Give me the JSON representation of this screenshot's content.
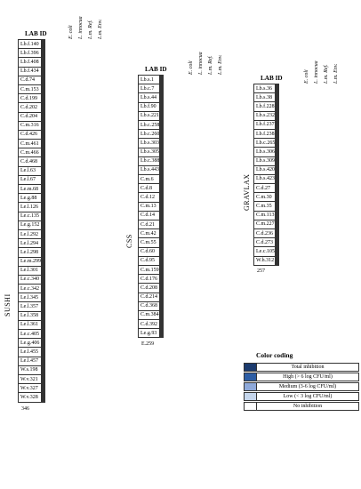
{
  "columns": [
    "E. coli",
    "L. innocua",
    "L.m. Ref.",
    "L.m. Env."
  ],
  "lab_id_header": "LAB ID",
  "levels": [
    "#ffffff",
    "#c5d6ec",
    "#8ea9da",
    "#2d5ea5",
    "#1c3b6e"
  ],
  "sushi": {
    "section": "SUSHI",
    "footer": "346",
    "rows": [
      {
        "id": "Lb.f.140",
        "v": [
          0,
          0,
          1,
          0
        ]
      },
      {
        "id": "Lb.f.396",
        "v": [
          0,
          0,
          1,
          0
        ]
      },
      {
        "id": "Lb.f.408",
        "v": [
          0,
          0,
          1,
          0
        ]
      },
      {
        "id": "Lb.f.434",
        "v": [
          0,
          0,
          1,
          0
        ]
      },
      {
        "id": "C.d.74",
        "v": [
          1,
          0,
          1,
          0
        ]
      },
      {
        "id": "C.m.153",
        "v": [
          0,
          1,
          2,
          2
        ]
      },
      {
        "id": "C.d.199",
        "v": [
          0,
          1,
          1,
          1
        ]
      },
      {
        "id": "C.d.202",
        "v": [
          1,
          0,
          1,
          0
        ]
      },
      {
        "id": "C.d.204",
        "v": [
          0,
          0,
          1,
          0
        ]
      },
      {
        "id": "C.m.316",
        "v": [
          2,
          4,
          4,
          4
        ]
      },
      {
        "id": "C.d.426",
        "v": [
          1,
          2,
          2,
          2
        ]
      },
      {
        "id": "C.m.461",
        "v": [
          2,
          4,
          2,
          2
        ]
      },
      {
        "id": "C.m.466",
        "v": [
          2,
          4,
          2,
          2
        ]
      },
      {
        "id": "C.d.468",
        "v": [
          2,
          0,
          4,
          4
        ]
      },
      {
        "id": "Le.l.63",
        "v": [
          2,
          2,
          2,
          2
        ]
      },
      {
        "id": "Le.l.67",
        "v": [
          2,
          2,
          2,
          2
        ]
      },
      {
        "id": "Le.m.68",
        "v": [
          2,
          2,
          2,
          4
        ]
      },
      {
        "id": "Le.g.88",
        "v": [
          2,
          2,
          2,
          2
        ]
      },
      {
        "id": "Le.l.126",
        "v": [
          2,
          2,
          2,
          2
        ]
      },
      {
        "id": "Le.c.135",
        "v": [
          2,
          2,
          2,
          2
        ]
      },
      {
        "id": "Le.g.152",
        "v": [
          2,
          2,
          2,
          2
        ]
      },
      {
        "id": "Le.l.292",
        "v": [
          2,
          2,
          2,
          2
        ]
      },
      {
        "id": "Le.l.294",
        "v": [
          2,
          2,
          2,
          2
        ]
      },
      {
        "id": "Le.l.298",
        "v": [
          2,
          2,
          2,
          2
        ]
      },
      {
        "id": "Le.m.299",
        "v": [
          2,
          2,
          2,
          2
        ]
      },
      {
        "id": "Le.l.301",
        "v": [
          2,
          2,
          2,
          2
        ]
      },
      {
        "id": "Le.c.340",
        "v": [
          2,
          2,
          2,
          2
        ]
      },
      {
        "id": "Le.c.342",
        "v": [
          2,
          2,
          2,
          2
        ]
      },
      {
        "id": "Le.l.345",
        "v": [
          2,
          2,
          2,
          2
        ]
      },
      {
        "id": "Le.l.357",
        "v": [
          2,
          2,
          2,
          2
        ]
      },
      {
        "id": "Le.l.358",
        "v": [
          2,
          2,
          4,
          2
        ]
      },
      {
        "id": "Le.l.361",
        "v": [
          2,
          2,
          2,
          2
        ]
      },
      {
        "id": "Le.c.405",
        "v": [
          2,
          2,
          2,
          2
        ]
      },
      {
        "id": "Le.g.406",
        "v": [
          2,
          4,
          4,
          4
        ]
      },
      {
        "id": "Le.l.455",
        "v": [
          2,
          2,
          2,
          2
        ]
      },
      {
        "id": "Le.l.457",
        "v": [
          2,
          2,
          2,
          2
        ]
      },
      {
        "id": "W.s.198",
        "v": [
          2,
          2,
          2,
          0
        ]
      },
      {
        "id": "W.v.321",
        "v": [
          2,
          2,
          2,
          2
        ]
      },
      {
        "id": "W.v.327",
        "v": [
          2,
          2,
          2,
          2
        ]
      },
      {
        "id": "W.v.328",
        "v": [
          2,
          2,
          2,
          2
        ]
      }
    ]
  },
  "css": {
    "section": "CSS",
    "footer": "E.259",
    "rows": [
      {
        "id": "Lb.s.1",
        "v": [
          0,
          0,
          1,
          0
        ]
      },
      {
        "id": "Lb.c.7",
        "v": [
          0,
          0,
          1,
          0
        ]
      },
      {
        "id": "Lb.s.44",
        "v": [
          0,
          0,
          1,
          2
        ]
      },
      {
        "id": "Lb.f.90",
        "v": [
          0,
          1,
          1,
          0
        ]
      },
      {
        "id": "Lb.s.221",
        "v": [
          0,
          0,
          1,
          0
        ]
      },
      {
        "id": "Lb.c.258",
        "v": [
          0,
          1,
          1,
          1
        ]
      },
      {
        "id": "Lb.c.260",
        "v": [
          0,
          0,
          1,
          1
        ]
      },
      {
        "id": "Lb.s.303",
        "v": [
          0,
          1,
          1,
          0
        ]
      },
      {
        "id": "Lb.s.305",
        "v": [
          1,
          0,
          1,
          0
        ]
      },
      {
        "id": "Lb.c.388",
        "v": [
          0,
          0,
          1,
          0
        ]
      },
      {
        "id": "Lb.s.443",
        "v": [
          0,
          0,
          1,
          0
        ]
      },
      {
        "id": "C.m.6",
        "v": [
          2,
          2,
          2,
          2
        ]
      },
      {
        "id": "C.d.8",
        "v": [
          2,
          2,
          2,
          2
        ]
      },
      {
        "id": "C.d.12",
        "v": [
          2,
          2,
          2,
          2
        ]
      },
      {
        "id": "C.m.13",
        "v": [
          2,
          2,
          4,
          4
        ]
      },
      {
        "id": "C.d.14",
        "v": [
          2,
          2,
          2,
          2
        ]
      },
      {
        "id": "C.d.21",
        "v": [
          2,
          2,
          2,
          2
        ]
      },
      {
        "id": "C.m.42",
        "v": [
          2,
          4,
          4,
          4
        ]
      },
      {
        "id": "C.m.55",
        "v": [
          2,
          4,
          4,
          4
        ]
      },
      {
        "id": "C.d.60",
        "v": [
          2,
          2,
          2,
          2
        ]
      },
      {
        "id": "C.d.95",
        "v": [
          2,
          2,
          2,
          2
        ]
      },
      {
        "id": "C.m.159",
        "v": [
          2,
          2,
          4,
          4
        ]
      },
      {
        "id": "C.d.176",
        "v": [
          2,
          2,
          2,
          2
        ]
      },
      {
        "id": "C.d.208",
        "v": [
          2,
          2,
          2,
          2
        ]
      },
      {
        "id": "C.d.214",
        "v": [
          2,
          1,
          2,
          2
        ]
      },
      {
        "id": "C.d.368",
        "v": [
          2,
          2,
          2,
          2
        ]
      },
      {
        "id": "C.m.384",
        "v": [
          2,
          2,
          1,
          1
        ]
      },
      {
        "id": "C.d.392",
        "v": [
          2,
          2,
          1,
          1
        ]
      },
      {
        "id": "Le.g.93",
        "v": [
          2,
          2,
          2,
          2
        ]
      }
    ]
  },
  "gravlax": {
    "section": "GRAVLAX",
    "footer": "257",
    "rows": [
      {
        "id": "Lb.s.36",
        "v": [
          0,
          0,
          0,
          0
        ]
      },
      {
        "id": "Lb.s.38",
        "v": [
          0,
          0,
          0,
          0
        ]
      },
      {
        "id": "Lb.f.228",
        "v": [
          0,
          0,
          1,
          0
        ]
      },
      {
        "id": "Lb.s.232",
        "v": [
          0,
          0,
          0,
          0
        ]
      },
      {
        "id": "Lb.f.237",
        "v": [
          0,
          0,
          0,
          0
        ]
      },
      {
        "id": "Lb.f.238",
        "v": [
          0,
          0,
          0,
          0
        ]
      },
      {
        "id": "Lb.c.265",
        "v": [
          0,
          0,
          0,
          0
        ]
      },
      {
        "id": "Lb.s.306",
        "v": [
          0,
          0,
          0,
          0
        ]
      },
      {
        "id": "Lb.s.309",
        "v": [
          0,
          0,
          0,
          0
        ]
      },
      {
        "id": "Lb.s.420",
        "v": [
          0,
          0,
          1,
          0
        ]
      },
      {
        "id": "Lb.s.423",
        "v": [
          0,
          0,
          0,
          0
        ]
      },
      {
        "id": "C.d.27",
        "v": [
          2,
          2,
          2,
          2
        ]
      },
      {
        "id": "C.m.30",
        "v": [
          2,
          4,
          4,
          4
        ]
      },
      {
        "id": "C.m.35",
        "v": [
          2,
          3,
          4,
          4
        ]
      },
      {
        "id": "C.m.113",
        "v": [
          2,
          2,
          2,
          2
        ]
      },
      {
        "id": "C.m.227",
        "v": [
          2,
          4,
          2,
          2
        ]
      },
      {
        "id": "C.d.236",
        "v": [
          2,
          2,
          1,
          1
        ]
      },
      {
        "id": "C.d.273",
        "v": [
          2,
          1,
          2,
          2
        ]
      },
      {
        "id": "Le.c.105",
        "v": [
          2,
          3,
          4,
          4
        ]
      },
      {
        "id": "W.h.312",
        "v": [
          2,
          2,
          2,
          2
        ]
      }
    ]
  },
  "legend": {
    "title": "Color coding",
    "items": [
      {
        "level": 4,
        "label": "Total inhibition"
      },
      {
        "level": 3,
        "label": "High (> 6 log CFU/ml)"
      },
      {
        "level": 2,
        "label": "Medium (3-6 log CFU/ml)"
      },
      {
        "level": 1,
        "label": "Low (< 3 log CFU/ml)"
      },
      {
        "level": 0,
        "label": "No inhibition"
      }
    ]
  }
}
